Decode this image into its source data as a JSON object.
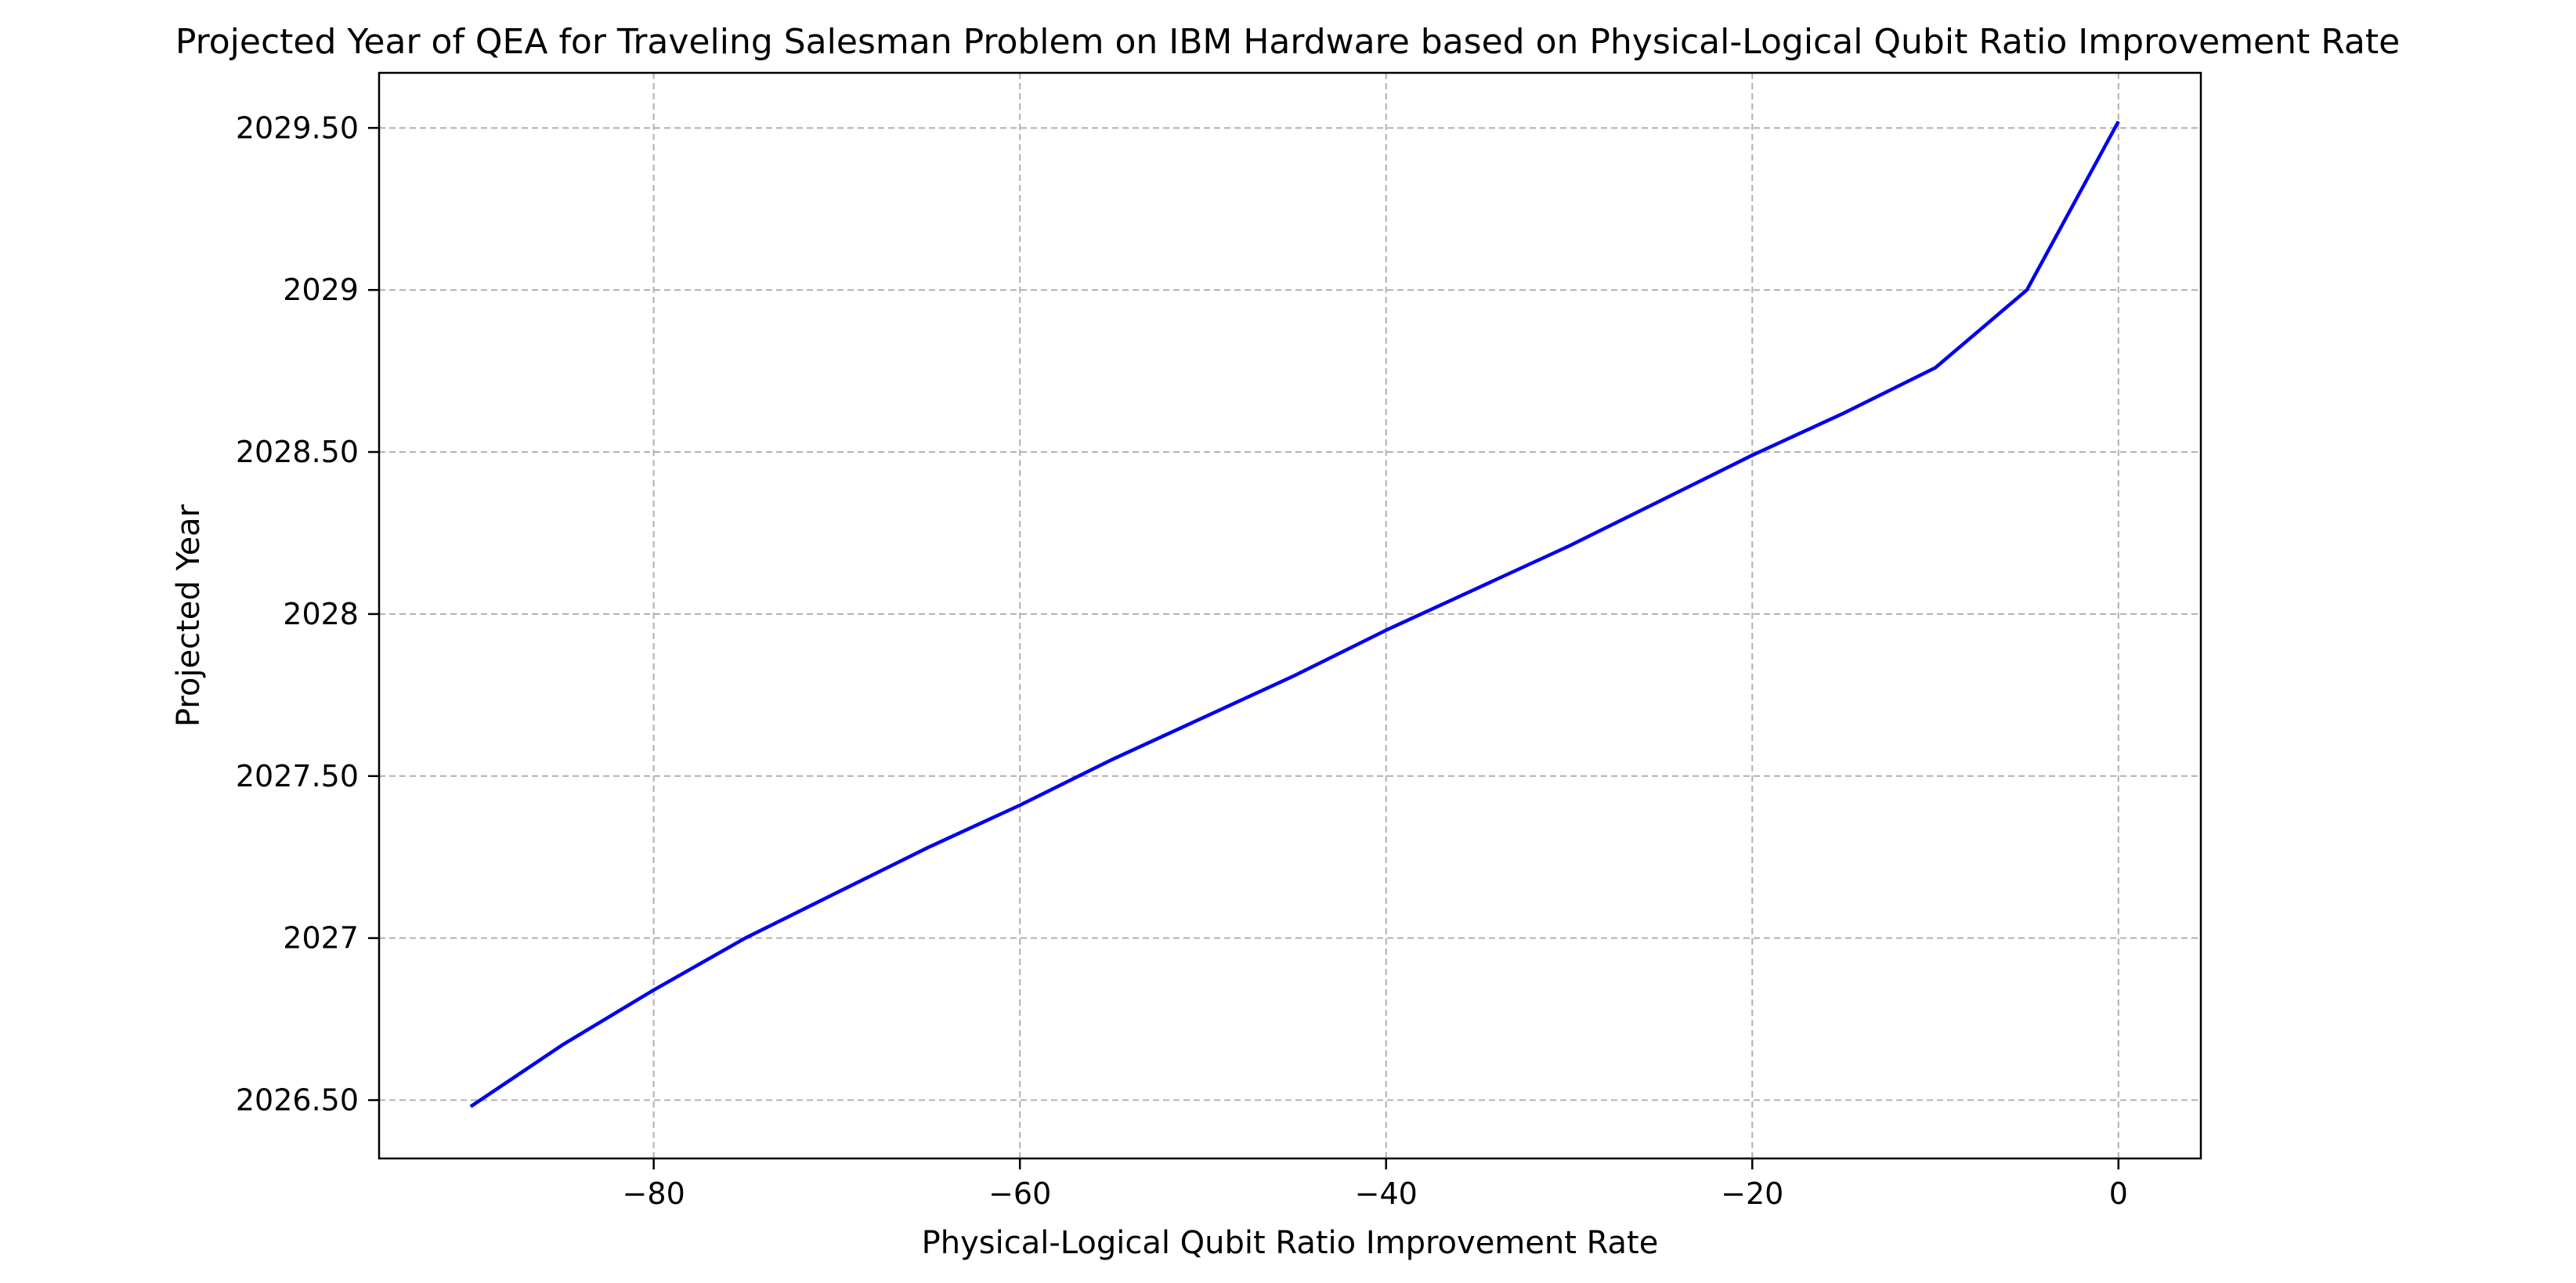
{
  "chart_data": {
    "type": "line",
    "title": "Projected Year of QEA for Traveling Salesman Problem on IBM Hardware based on Physical-Logical Qubit Ratio Improvement Rate",
    "xlabel": "Physical-Logical Qubit Ratio Improvement Rate",
    "ylabel": "Projected Year",
    "xlim": [
      -95,
      4.5
    ],
    "ylim": [
      2026.32,
      2029.67
    ],
    "x_ticks": [
      -80,
      -60,
      -40,
      -20,
      0
    ],
    "x_tick_labels": [
      "−80",
      "−60",
      "−40",
      "−20",
      "0"
    ],
    "y_ticks": [
      2026.5,
      2027,
      2027.5,
      2028,
      2028.5,
      2029,
      2029.5
    ],
    "y_tick_labels": [
      "2026.50",
      "2027",
      "2027.50",
      "2028",
      "2028.50",
      "2029",
      "2029.50"
    ],
    "grid": true,
    "series": [
      {
        "color": "#0000ee",
        "x": [
          -90,
          -85,
          -80,
          -75,
          -70,
          -65,
          -60,
          -55,
          -50,
          -45,
          -40,
          -35,
          -30,
          -25,
          -20,
          -15,
          -10,
          -5,
          0
        ],
        "y": [
          2026.48,
          2026.67,
          2026.84,
          2027.0,
          2027.14,
          2027.28,
          2027.41,
          2027.55,
          2027.68,
          2027.81,
          2027.95,
          2028.08,
          2028.21,
          2028.35,
          2028.49,
          2028.62,
          2028.76,
          2029.0,
          2029.52
        ]
      }
    ]
  }
}
